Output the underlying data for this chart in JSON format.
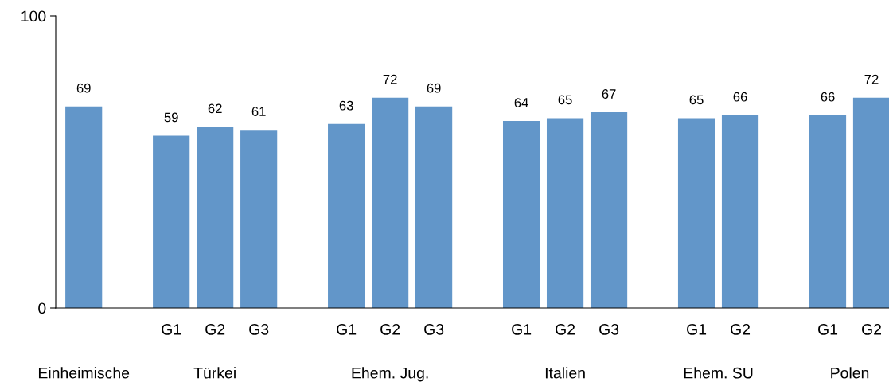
{
  "chart_data": {
    "type": "bar",
    "categories": [
      null,
      null,
      "G1",
      "G2",
      "G3",
      null,
      "G1",
      "G2",
      "G3",
      null,
      "G1",
      "G2",
      "G3",
      null,
      "G1",
      "G2",
      null,
      "G1",
      "G2"
    ],
    "values": [
      69,
      null,
      59,
      62,
      61,
      null,
      63,
      72,
      69,
      null,
      64,
      65,
      67,
      null,
      65,
      66,
      null,
      66,
      72
    ],
    "color": "#6296c9",
    "ylim": [
      0,
      100
    ],
    "yticks": [
      0,
      100
    ],
    "grid": false,
    "data_labels": true,
    "annotations": [
      "Einheimische",
      "Türkei",
      "Ehem. Jug.",
      "Italien",
      "Ehem. SU",
      "Polen"
    ]
  }
}
